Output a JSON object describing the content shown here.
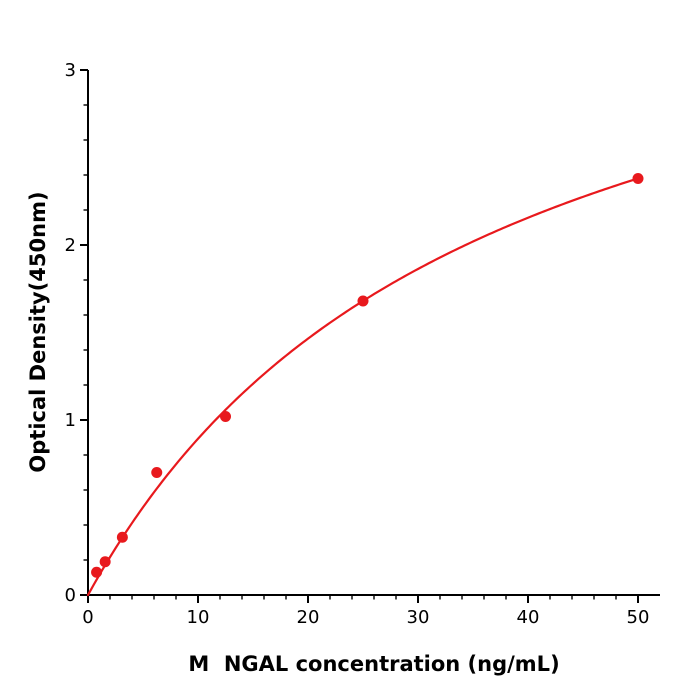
{
  "chart": {
    "ylabel": "Optical Density(450nm)",
    "xlabel": "M  NGAL concentration (ng/mL)"
  },
  "chart_data": {
    "type": "scatter",
    "title": "",
    "xlabel": "M  NGAL concentration (ng/mL)",
    "ylabel": "Optical Density(450nm)",
    "x": [
      0.78,
      1.56,
      3.125,
      6.25,
      12.5,
      25,
      50
    ],
    "y": [
      0.13,
      0.19,
      0.33,
      0.7,
      1.02,
      1.68,
      2.38
    ],
    "curve_fit": {
      "type": "michaelis_menten",
      "vmax": 4.08,
      "km": 35.7
    },
    "xlim": [
      0,
      52
    ],
    "ylim": [
      0,
      3
    ],
    "xticks": [
      0,
      10,
      20,
      30,
      40,
      50
    ],
    "yticks": [
      0,
      1,
      2,
      3
    ],
    "x_minor_step": 2,
    "y_minor_step": 0.2,
    "grid": false,
    "legend": null,
    "marker_color": "#e8191d",
    "line_color": "#e8191d",
    "axis_color": "#000000",
    "tick_label_color": "#000000"
  }
}
